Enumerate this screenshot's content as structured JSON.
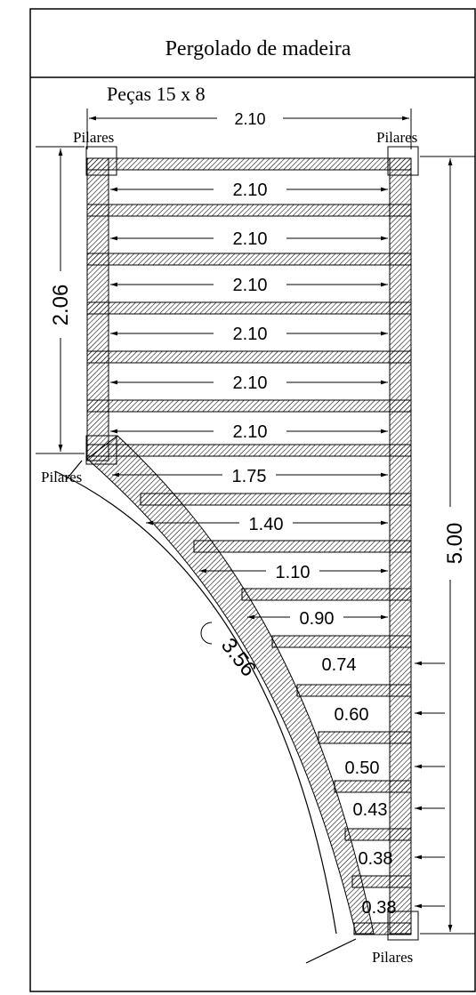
{
  "title": "Pergolado de madeira",
  "piece_label": "Peças 15 x 8",
  "pillar_label": "Pilares",
  "top_width": "2.10",
  "beam_widths": [
    "2.10",
    "2.10",
    "2.10",
    "2.10",
    "2.10",
    "2.10"
  ],
  "stepped_widths": [
    "1.75",
    "1.40",
    "1.10",
    "0.90",
    "0.74",
    "0.60",
    "0.50",
    "0.43",
    "0.38",
    "0.38"
  ],
  "left_height": "2.06",
  "total_height": "5.00",
  "arc_length": "3.56",
  "colors": {
    "line": "#000000",
    "hatch": "#000000",
    "background": "#ffffff"
  }
}
